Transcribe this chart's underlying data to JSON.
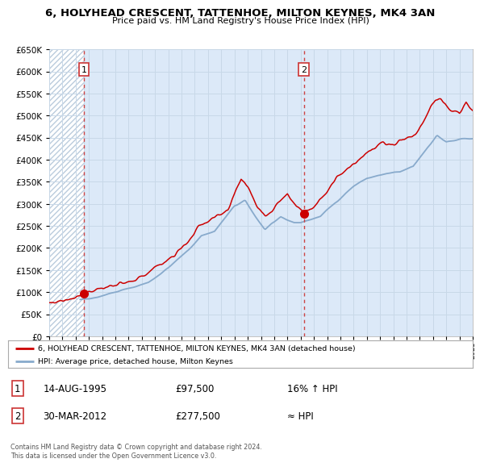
{
  "title": "6, HOLYHEAD CRESCENT, TATTENHOE, MILTON KEYNES, MK4 3AN",
  "subtitle": "Price paid vs. HM Land Registry's House Price Index (HPI)",
  "legend_line1": "6, HOLYHEAD CRESCENT, TATTENHOE, MILTON KEYNES, MK4 3AN (detached house)",
  "legend_line2": "HPI: Average price, detached house, Milton Keynes",
  "annotation1_label": "1",
  "annotation1_date": "14-AUG-1995",
  "annotation1_price": "£97,500",
  "annotation1_hpi": "16% ↑ HPI",
  "annotation2_label": "2",
  "annotation2_date": "30-MAR-2012",
  "annotation2_price": "£277,500",
  "annotation2_hpi": "≈ HPI",
  "copyright": "Contains HM Land Registry data © Crown copyright and database right 2024.\nThis data is licensed under the Open Government Licence v3.0.",
  "plot_bg_color": "#dce9f8",
  "hatch_bg_color": "#ffffff",
  "grid_color": "#c8d8e8",
  "red_line_color": "#cc0000",
  "blue_line_color": "#88aacc",
  "vline_color": "#cc4444",
  "marker_color": "#cc0000",
  "point1_year": 1995.62,
  "point1_value": 97500,
  "point2_year": 2012.24,
  "point2_value": 277500,
  "ylim": [
    0,
    650000
  ],
  "xlim_start": 1993,
  "xlim_end": 2025,
  "hpi_anchors": [
    [
      1993.0,
      78000
    ],
    [
      1994.0,
      80000
    ],
    [
      1995.0,
      83000
    ],
    [
      1995.62,
      84500
    ],
    [
      1996.5,
      88000
    ],
    [
      1997.5,
      96000
    ],
    [
      1999.0,
      108000
    ],
    [
      2000.5,
      122000
    ],
    [
      2002.0,
      155000
    ],
    [
      2003.5,
      195000
    ],
    [
      2004.5,
      228000
    ],
    [
      2005.5,
      238000
    ],
    [
      2007.0,
      295000
    ],
    [
      2007.8,
      307000
    ],
    [
      2008.5,
      275000
    ],
    [
      2009.3,
      242000
    ],
    [
      2009.8,
      255000
    ],
    [
      2010.5,
      268000
    ],
    [
      2011.5,
      258000
    ],
    [
      2012.0,
      258000
    ],
    [
      2012.5,
      262000
    ],
    [
      2013.5,
      272000
    ],
    [
      2014.5,
      300000
    ],
    [
      2016.0,
      340000
    ],
    [
      2017.0,
      358000
    ],
    [
      2018.5,
      368000
    ],
    [
      2019.5,
      372000
    ],
    [
      2020.5,
      385000
    ],
    [
      2021.5,
      425000
    ],
    [
      2022.3,
      455000
    ],
    [
      2023.0,
      440000
    ],
    [
      2024.0,
      445000
    ],
    [
      2025.0,
      450000
    ]
  ],
  "prop_anchors": [
    [
      1993.0,
      75000
    ],
    [
      1994.5,
      84000
    ],
    [
      1995.62,
      97500
    ],
    [
      1997.0,
      110000
    ],
    [
      1998.5,
      118000
    ],
    [
      1999.5,
      126000
    ],
    [
      2001.0,
      155000
    ],
    [
      2002.5,
      185000
    ],
    [
      2003.5,
      215000
    ],
    [
      2004.5,
      255000
    ],
    [
      2005.5,
      268000
    ],
    [
      2006.5,
      283000
    ],
    [
      2007.5,
      358000
    ],
    [
      2008.0,
      340000
    ],
    [
      2008.7,
      295000
    ],
    [
      2009.3,
      275000
    ],
    [
      2009.8,
      282000
    ],
    [
      2010.5,
      310000
    ],
    [
      2011.0,
      322000
    ],
    [
      2011.5,
      302000
    ],
    [
      2012.0,
      288000
    ],
    [
      2012.24,
      277500
    ],
    [
      2012.5,
      285000
    ],
    [
      2013.0,
      295000
    ],
    [
      2014.0,
      330000
    ],
    [
      2015.0,
      368000
    ],
    [
      2016.0,
      392000
    ],
    [
      2017.0,
      415000
    ],
    [
      2017.8,
      430000
    ],
    [
      2018.3,
      440000
    ],
    [
      2018.8,
      432000
    ],
    [
      2019.5,
      445000
    ],
    [
      2020.0,
      448000
    ],
    [
      2020.7,
      458000
    ],
    [
      2021.3,
      488000
    ],
    [
      2021.8,
      520000
    ],
    [
      2022.2,
      538000
    ],
    [
      2022.6,
      535000
    ],
    [
      2023.0,
      520000
    ],
    [
      2023.5,
      510000
    ],
    [
      2024.0,
      505000
    ],
    [
      2024.5,
      530000
    ],
    [
      2025.0,
      510000
    ]
  ]
}
